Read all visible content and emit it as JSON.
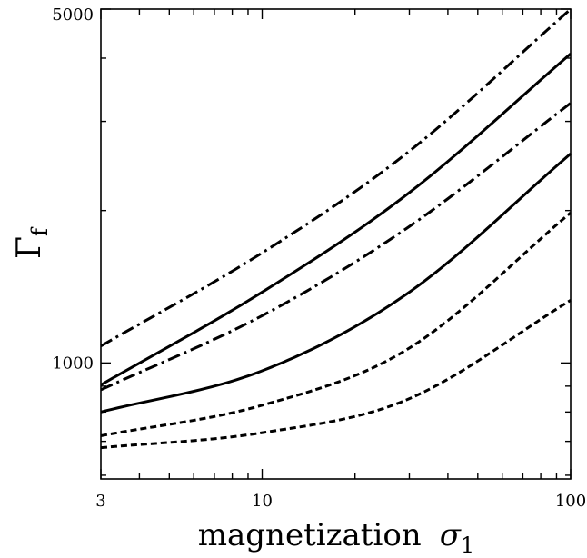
{
  "chart_data": {
    "type": "line",
    "title": "",
    "xlabel": "magnetization",
    "xlabel_symbol": "σ",
    "xlabel_subscript": "1",
    "ylabel": "Γ",
    "ylabel_subscript": "f",
    "xscale": "log",
    "yscale": "log",
    "xlim": [
      3,
      100
    ],
    "ylim": [
      590,
      5000
    ],
    "x_ticks": [
      3,
      10,
      100
    ],
    "y_ticks": [
      1000,
      5000
    ],
    "x_tick_labels": [
      "3",
      "10",
      "100"
    ],
    "y_tick_labels": [
      "1000",
      "5000"
    ],
    "grid": false,
    "legend": "none",
    "line_color": "#000000",
    "series": [
      {
        "style": "dashdot",
        "x": [
          3,
          10,
          30,
          100
        ],
        "y": [
          1080,
          1650,
          2620,
          5000
        ]
      },
      {
        "style": "solid",
        "x": [
          3,
          10,
          30,
          100
        ],
        "y": [
          905,
          1380,
          2170,
          4080
        ]
      },
      {
        "style": "dashdot",
        "x": [
          3,
          10,
          30,
          100
        ],
        "y": [
          885,
          1240,
          1860,
          3260
        ]
      },
      {
        "style": "solid",
        "x": [
          3,
          10,
          30,
          100
        ],
        "y": [
          800,
          965,
          1380,
          2590
        ]
      },
      {
        "style": "dashed",
        "x": [
          3,
          10,
          30,
          100
        ],
        "y": [
          718,
          825,
          1070,
          1980
        ]
      },
      {
        "style": "dashed",
        "x": [
          3,
          10,
          30,
          100
        ],
        "y": [
          680,
          728,
          850,
          1330
        ]
      }
    ]
  }
}
